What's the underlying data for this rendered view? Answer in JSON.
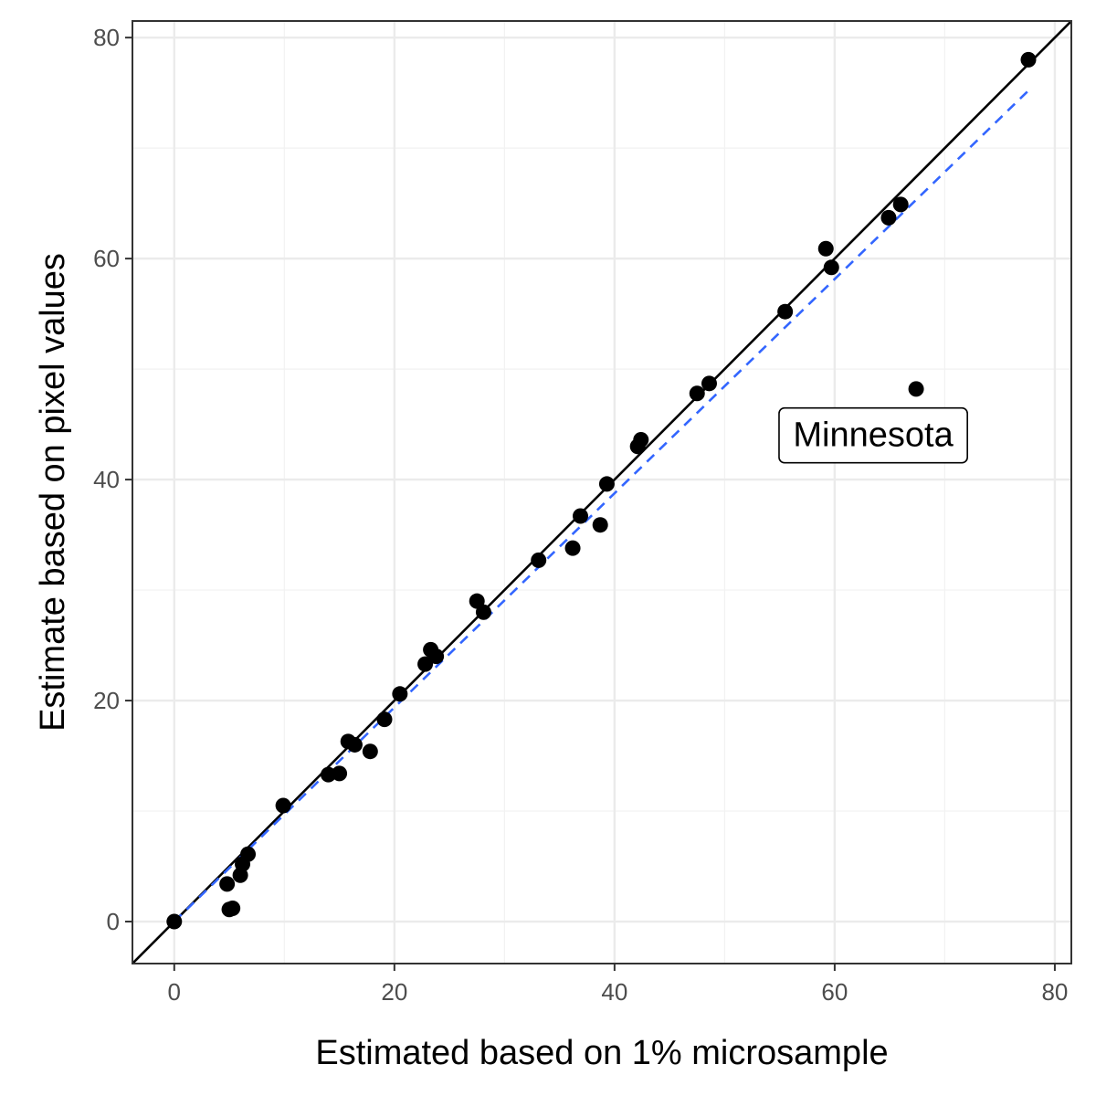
{
  "chart_data": {
    "type": "scatter",
    "xlabel": "Estimated based on 1% microsample",
    "ylabel": "Estimate based on pixel values",
    "xlim": [
      -3.8,
      81.5
    ],
    "ylim": [
      -3.8,
      81.5
    ],
    "x_ticks": [
      0,
      20,
      40,
      60,
      80
    ],
    "y_ticks": [
      0,
      20,
      40,
      60,
      80
    ],
    "grid": true,
    "colors": {
      "points": "#000000",
      "identity_line": "#000000",
      "fit_line": "#3366ff",
      "grid_major": "#ebebeb",
      "grid_minor": "#f2f2f2",
      "panel_border": "#333333"
    },
    "identity_line": {
      "from": [
        -3.8,
        -3.8
      ],
      "to": [
        81.5,
        81.5
      ],
      "style": "solid"
    },
    "fit_line": {
      "from": [
        0,
        0
      ],
      "to": [
        77.6,
        75.2
      ],
      "style": "dashed"
    },
    "points": [
      {
        "x": 0.0,
        "y": 0.0
      },
      {
        "x": 5.0,
        "y": 1.1
      },
      {
        "x": 5.3,
        "y": 1.2
      },
      {
        "x": 4.8,
        "y": 3.4
      },
      {
        "x": 6.0,
        "y": 4.2
      },
      {
        "x": 6.2,
        "y": 5.2
      },
      {
        "x": 6.7,
        "y": 6.1
      },
      {
        "x": 9.9,
        "y": 10.5
      },
      {
        "x": 14.0,
        "y": 13.3
      },
      {
        "x": 15.0,
        "y": 13.4
      },
      {
        "x": 15.8,
        "y": 16.3
      },
      {
        "x": 16.4,
        "y": 16.0
      },
      {
        "x": 17.8,
        "y": 15.4
      },
      {
        "x": 19.1,
        "y": 18.3
      },
      {
        "x": 20.5,
        "y": 20.6
      },
      {
        "x": 22.8,
        "y": 23.3
      },
      {
        "x": 23.3,
        "y": 24.6
      },
      {
        "x": 23.8,
        "y": 24.0
      },
      {
        "x": 27.5,
        "y": 29.0
      },
      {
        "x": 28.1,
        "y": 28.0
      },
      {
        "x": 33.1,
        "y": 32.7
      },
      {
        "x": 36.2,
        "y": 33.8
      },
      {
        "x": 36.9,
        "y": 36.7
      },
      {
        "x": 38.7,
        "y": 35.9
      },
      {
        "x": 39.3,
        "y": 39.6
      },
      {
        "x": 42.1,
        "y": 43.0
      },
      {
        "x": 42.4,
        "y": 43.6
      },
      {
        "x": 47.5,
        "y": 47.8
      },
      {
        "x": 48.6,
        "y": 48.7
      },
      {
        "x": 55.5,
        "y": 55.2
      },
      {
        "x": 59.2,
        "y": 60.9
      },
      {
        "x": 59.7,
        "y": 59.2
      },
      {
        "x": 64.9,
        "y": 63.7
      },
      {
        "x": 66.0,
        "y": 64.9
      },
      {
        "x": 67.4,
        "y": 48.2
      },
      {
        "x": 77.6,
        "y": 78.0
      }
    ],
    "annotations": [
      {
        "text": "Minnesota",
        "x": 63.5,
        "y": 44.0
      }
    ]
  }
}
